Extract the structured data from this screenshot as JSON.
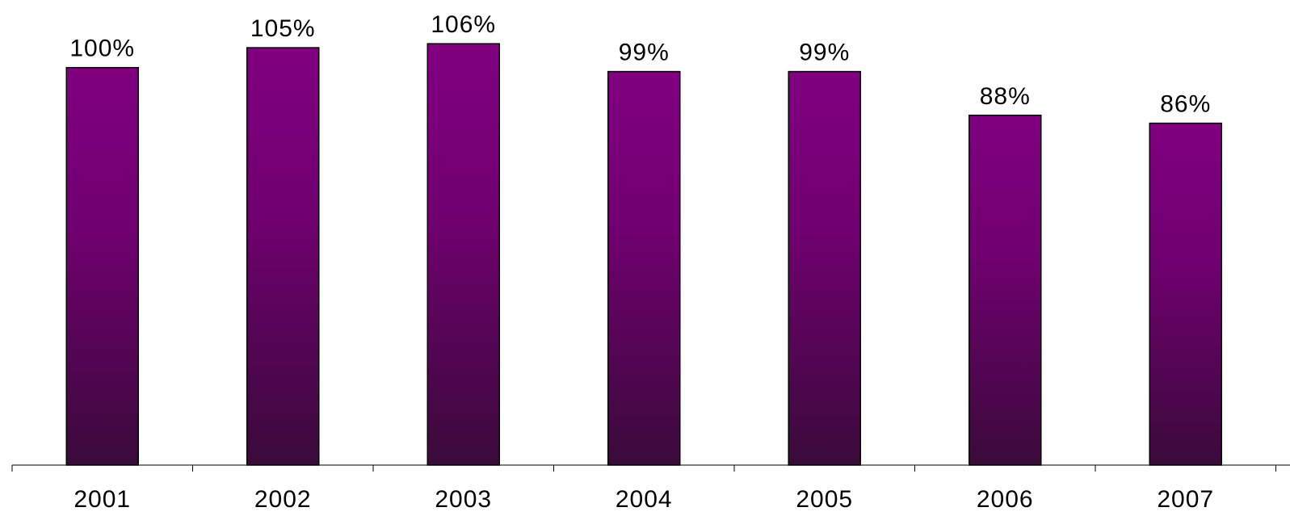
{
  "chart_data": {
    "type": "bar",
    "categories": [
      "2001",
      "2002",
      "2003",
      "2004",
      "2005",
      "2006",
      "2007"
    ],
    "values": [
      100,
      105,
      106,
      99,
      99,
      88,
      86
    ],
    "data_labels": [
      "100%",
      "105%",
      "106%",
      "99%",
      "99%",
      "88%",
      "86%"
    ],
    "title": "",
    "xlabel": "",
    "ylabel": "",
    "ylim": [
      0,
      117
    ],
    "grid": false,
    "legend": "none",
    "colors": {
      "bar_top": "#800080",
      "bar_bottom": "#3a0a3a"
    }
  }
}
